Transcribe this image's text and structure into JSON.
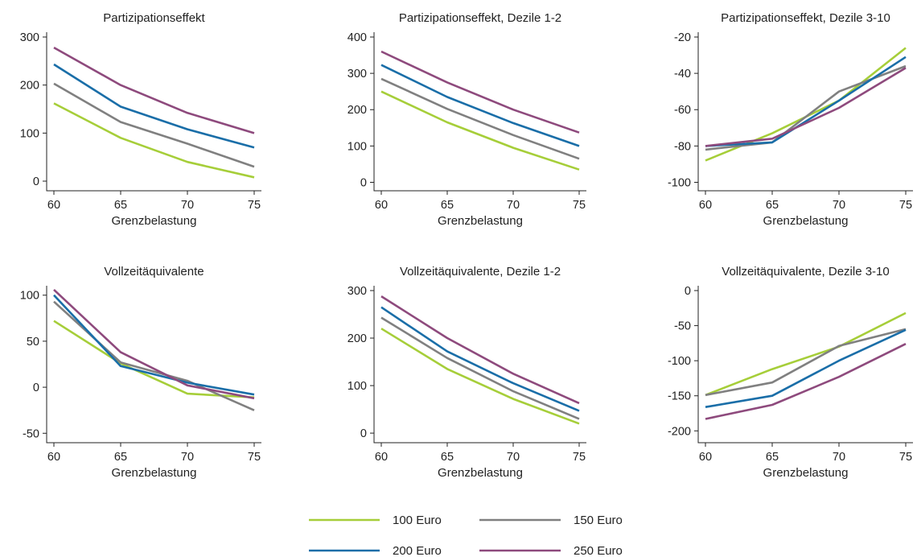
{
  "colors": {
    "100 Euro": "#a6ce39",
    "150 Euro": "#808080",
    "200 Euro": "#1a6ea8",
    "250 Euro": "#8e4a7d"
  },
  "legend": [
    {
      "name": "100 Euro",
      "color": "#a6ce39"
    },
    {
      "name": "150 Euro",
      "color": "#808080"
    },
    {
      "name": "200 Euro",
      "color": "#1a6ea8"
    },
    {
      "name": "250 Euro",
      "color": "#8e4a7d"
    }
  ],
  "chart_data": [
    {
      "type": "line",
      "title": "Partizipationseffekt",
      "xlabel": "Grenzbelastung",
      "x": [
        60,
        65,
        70,
        75
      ],
      "xticks": [
        60,
        65,
        70,
        75
      ],
      "ylim": [
        -10,
        300
      ],
      "yticks": [
        0,
        100,
        200,
        300
      ],
      "grid": false,
      "series": [
        {
          "name": "100 Euro",
          "values": [
            162,
            90,
            40,
            8
          ]
        },
        {
          "name": "150 Euro",
          "values": [
            203,
            123,
            78,
            30
          ]
        },
        {
          "name": "200 Euro",
          "values": [
            243,
            155,
            108,
            70
          ]
        },
        {
          "name": "250 Euro",
          "values": [
            278,
            200,
            142,
            100
          ]
        }
      ]
    },
    {
      "type": "line",
      "title": "Partizipationseffekt, Dezile 1-2",
      "xlabel": "Grenzbelastung",
      "x": [
        60,
        65,
        70,
        75
      ],
      "xticks": [
        60,
        65,
        70,
        75
      ],
      "ylim": [
        -10,
        400
      ],
      "yticks": [
        0,
        100,
        200,
        300,
        400
      ],
      "grid": false,
      "series": [
        {
          "name": "100 Euro",
          "values": [
            250,
            165,
            95,
            35
          ]
        },
        {
          "name": "150 Euro",
          "values": [
            285,
            202,
            130,
            65
          ]
        },
        {
          "name": "200 Euro",
          "values": [
            323,
            235,
            163,
            100
          ]
        },
        {
          "name": "250 Euro",
          "values": [
            360,
            275,
            200,
            137
          ]
        }
      ]
    },
    {
      "type": "line",
      "title": "Partizipationseffekt, Dezile 3-10",
      "xlabel": "Grenzbelastung",
      "x": [
        60,
        65,
        70,
        75
      ],
      "xticks": [
        60,
        65,
        70,
        75
      ],
      "ylim": [
        -102,
        -20
      ],
      "yticks": [
        -100,
        -80,
        -60,
        -40,
        -20
      ],
      "grid": false,
      "series": [
        {
          "name": "100 Euro",
          "values": [
            -88,
            -73,
            -55,
            -26
          ]
        },
        {
          "name": "150 Euro",
          "values": [
            -82,
            -78,
            -50,
            -36
          ]
        },
        {
          "name": "200 Euro",
          "values": [
            -80,
            -78,
            -55,
            -31
          ]
        },
        {
          "name": "250 Euro",
          "values": [
            -80,
            -76,
            -59,
            -37
          ]
        }
      ]
    },
    {
      "type": "line",
      "title": "Vollzeitäquivalente",
      "xlabel": "Grenzbelastung",
      "x": [
        60,
        65,
        70,
        75
      ],
      "xticks": [
        60,
        65,
        70,
        75
      ],
      "ylim": [
        -55,
        105
      ],
      "yticks": [
        -50,
        0,
        50,
        100
      ],
      "grid": false,
      "series": [
        {
          "name": "100 Euro",
          "values": [
            72,
            26,
            -7,
            -11
          ]
        },
        {
          "name": "150 Euro",
          "values": [
            93,
            27,
            7,
            -25
          ]
        },
        {
          "name": "200 Euro",
          "values": [
            100,
            23,
            5,
            -8
          ]
        },
        {
          "name": "250 Euro",
          "values": [
            106,
            38,
            2,
            -12
          ]
        }
      ]
    },
    {
      "type": "line",
      "title": "Vollzeitäquivalente, Dezile 1-2",
      "xlabel": "Grenzbelastung",
      "x": [
        60,
        65,
        70,
        75
      ],
      "xticks": [
        60,
        65,
        70,
        75
      ],
      "ylim": [
        -10,
        300
      ],
      "yticks": [
        0,
        100,
        200,
        300
      ],
      "grid": false,
      "series": [
        {
          "name": "100 Euro",
          "values": [
            220,
            135,
            72,
            20
          ]
        },
        {
          "name": "150 Euro",
          "values": [
            243,
            158,
            88,
            30
          ]
        },
        {
          "name": "200 Euro",
          "values": [
            265,
            172,
            105,
            47
          ]
        },
        {
          "name": "250 Euro",
          "values": [
            288,
            200,
            125,
            63
          ]
        }
      ]
    },
    {
      "type": "line",
      "title": "Vollzeitäquivalente, Dezile 3-10",
      "xlabel": "Grenzbelastung",
      "x": [
        60,
        65,
        70,
        75
      ],
      "xticks": [
        60,
        65,
        70,
        75
      ],
      "ylim": [
        -210,
        0
      ],
      "yticks": [
        -200,
        -150,
        -100,
        -50,
        0
      ],
      "grid": false,
      "series": [
        {
          "name": "100 Euro",
          "values": [
            -149,
            -112,
            -80,
            -32
          ]
        },
        {
          "name": "150 Euro",
          "values": [
            -149,
            -131,
            -79,
            -55
          ]
        },
        {
          "name": "200 Euro",
          "values": [
            -166,
            -150,
            -100,
            -56
          ]
        },
        {
          "name": "250 Euro",
          "values": [
            -183,
            -163,
            -123,
            -76
          ]
        }
      ]
    }
  ]
}
